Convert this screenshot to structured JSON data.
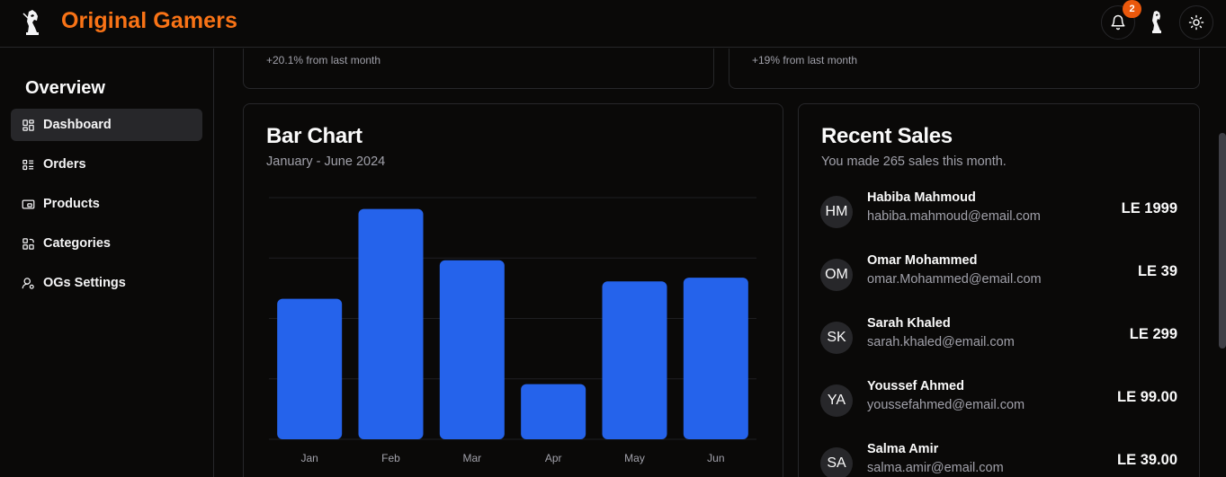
{
  "header": {
    "brand": "Original Gamers",
    "notifications_count": "2",
    "icons": {
      "logo": "knight-chess-logo",
      "bell": "bell-icon",
      "theme": "sun-icon"
    }
  },
  "sidebar": {
    "title": "Overview",
    "items": [
      {
        "label": "Dashboard",
        "icon": "dashboard-icon",
        "active": true
      },
      {
        "label": "Orders",
        "icon": "orders-icon",
        "active": false
      },
      {
        "label": "Products",
        "icon": "products-icon",
        "active": false
      },
      {
        "label": "Categories",
        "icon": "categories-icon",
        "active": false
      },
      {
        "label": "OGs Settings",
        "icon": "user-settings-icon",
        "active": false
      }
    ]
  },
  "stats": [
    {
      "change": "+20.1% from last month"
    },
    {
      "change": "+19% from last month"
    }
  ],
  "chart_card": {
    "title": "Bar Chart",
    "description": "January - June 2024"
  },
  "chart_data": {
    "type": "bar",
    "title": "Bar Chart",
    "subtitle": "January - June 2024",
    "categories": [
      "Jan",
      "Feb",
      "Mar",
      "Apr",
      "May",
      "Jun"
    ],
    "values": [
      186,
      305,
      237,
      73,
      209,
      214
    ],
    "ylim": [
      0,
      320
    ],
    "grid": true,
    "xlabel": "",
    "ylabel": "",
    "color": "#2563eb"
  },
  "recent_sales": {
    "title": "Recent Sales",
    "description": "You made 265 sales this month.",
    "items": [
      {
        "initials": "HM",
        "name": "Habiba Mahmoud",
        "email": "habiba.mahmoud@email.com",
        "amount": "LE 1999"
      },
      {
        "initials": "OM",
        "name": "Omar Mohammed",
        "email": "omar.Mohammed@email.com",
        "amount": "LE 39"
      },
      {
        "initials": "SK",
        "name": "Sarah Khaled",
        "email": "sarah.khaled@email.com",
        "amount": "LE 299"
      },
      {
        "initials": "YA",
        "name": "Youssef Ahmed",
        "email": "youssefahmed@email.com",
        "amount": "LE 99.00"
      },
      {
        "initials": "SA",
        "name": "Salma Amir",
        "email": "salma.amir@email.com",
        "amount": "LE 39.00"
      }
    ]
  },
  "colors": {
    "accent": "#f97316",
    "badge": "#ea580c",
    "bar": "#2563eb",
    "background": "#0a0908",
    "border": "#27272a"
  }
}
